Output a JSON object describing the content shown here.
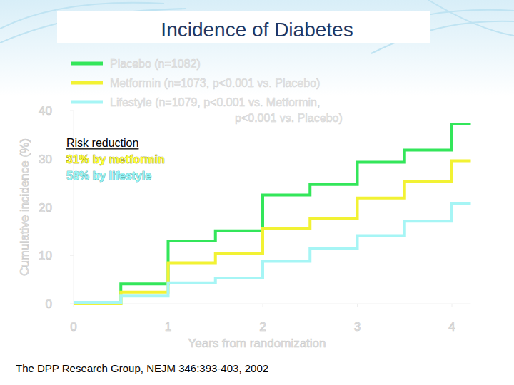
{
  "chart_data": {
    "type": "line",
    "line_style": "step",
    "title": "Incidence of Diabetes",
    "x_label": "Years from randomization",
    "y_label": "Cumulative incidence (%)",
    "x": [
      0,
      0.5,
      1,
      1.5,
      2,
      2.5,
      3,
      3.5,
      4,
      4.2
    ],
    "series": [
      {
        "name": "Placebo (n=1082)",
        "color": "#33e65a",
        "values": [
          0,
          4.1,
          13,
          15.1,
          22.5,
          24.7,
          29.3,
          31.8,
          37.2,
          37.2
        ]
      },
      {
        "name": "Metformin (n=1073, p<0.001 vs. Placebo)",
        "color": "#f2f233",
        "values": [
          0,
          2.4,
          8.5,
          10.4,
          15.6,
          17.6,
          21.9,
          25.4,
          29.6,
          29.6
        ]
      },
      {
        "name": "Lifestyle (n=1079, p<0.001 vs. Metformin, p<0.001 vs. Placebo)",
        "color": "#a6f5f5",
        "values": [
          0.3,
          1.6,
          4.3,
          5.3,
          8.8,
          11.5,
          14.1,
          17.1,
          20.7,
          20.7
        ]
      }
    ],
    "xlim": [
      0,
      4.2
    ],
    "xticks": [
      0,
      1,
      2,
      3,
      4
    ],
    "ylim": [
      0,
      40
    ],
    "yticks": [
      0,
      10,
      20,
      30,
      40
    ],
    "grid": false,
    "legend": "top-left",
    "annotations": [
      "Risk reduction",
      "31% by metformin",
      "58% by lifestyle"
    ],
    "source": "The DPP Research Group, NEJM 346:393-403, 2002"
  }
}
